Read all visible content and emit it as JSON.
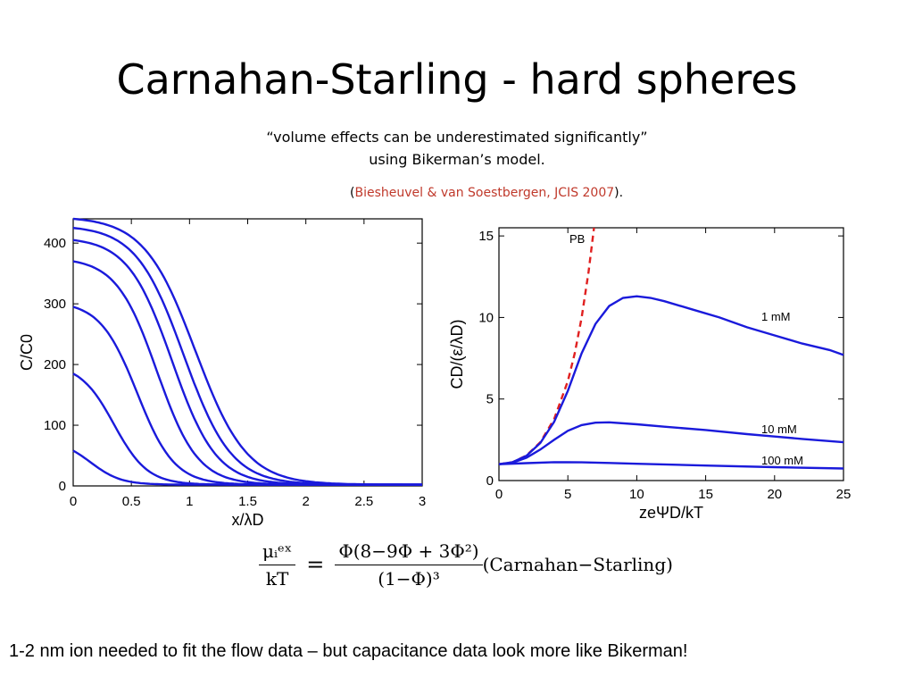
{
  "slide": {
    "title": "Carnahan-Starling - hard spheres",
    "quote_line1": "“volume effects can be underestimated significantly”",
    "quote_line2": "using Bikerman’s model.",
    "citation_open": "(",
    "citation_ref": "Biesheuvel & van Soestbergen, JCIS 2007",
    "citation_close": ").",
    "bottom_text": "1-2 nm ion needed to fit the flow data – but capacitance data look more like Bikerman!",
    "equation": {
      "lhs_num": "μᵢᵉˣ",
      "lhs_den": "kT",
      "eq": "=",
      "rhs_num": "Φ(8−9Φ + 3Φ²)",
      "rhs_den": "(1−Φ)³",
      "label": "(Carnahan−Starling)"
    }
  },
  "chart_data": [
    {
      "type": "line",
      "xlabel": "x/λD",
      "ylabel": "C/C0",
      "xlim": [
        0,
        3
      ],
      "ylim": [
        0,
        440
      ],
      "xticks": [
        "0",
        "0.5",
        "1",
        "1.5",
        "2",
        "2.5",
        "3"
      ],
      "yticks": [
        "0",
        "100",
        "200",
        "300",
        "400"
      ],
      "line_color": "#1a1adb",
      "curve_start_values": [
        440,
        425,
        405,
        370,
        295,
        185,
        58
      ],
      "curve_half_points": [
        1.05,
        0.95,
        0.85,
        0.72,
        0.55,
        0.35,
        0.15
      ],
      "tail_value": 2,
      "legend": "none",
      "grid": false
    },
    {
      "type": "line",
      "xlabel": "zeΨD/kT",
      "ylabel": "CD/(ε/λD)",
      "xlim": [
        0,
        25
      ],
      "ylim": [
        0,
        15.5
      ],
      "xticks": [
        "0",
        "5",
        "10",
        "15",
        "20",
        "25"
      ],
      "yticks": [
        "0",
        "5",
        "10",
        "15"
      ],
      "legend": "none",
      "grid": false,
      "series": [
        {
          "name": "PB",
          "color": "#e02020",
          "dashed": true,
          "x": [
            0,
            1,
            2,
            3,
            4,
            5,
            5.5,
            6,
            6.5,
            6.9
          ],
          "y": [
            1.0,
            1.13,
            1.54,
            2.35,
            3.76,
            6.1,
            7.8,
            9.98,
            12.8,
            15.6
          ]
        },
        {
          "name": "1 mM",
          "color": "#1a1adb",
          "dashed": false,
          "x": [
            0,
            1,
            2,
            3,
            4,
            5,
            6,
            7,
            8,
            9,
            10,
            11,
            12,
            14,
            16,
            18,
            20,
            22,
            24,
            25
          ],
          "y": [
            1.0,
            1.13,
            1.52,
            2.3,
            3.6,
            5.5,
            7.8,
            9.6,
            10.7,
            11.2,
            11.3,
            11.2,
            11.0,
            10.5,
            10.0,
            9.4,
            8.9,
            8.4,
            8.0,
            7.7
          ]
        },
        {
          "name": "10 mM",
          "color": "#1a1adb",
          "dashed": false,
          "x": [
            0,
            1,
            2,
            3,
            4,
            5,
            6,
            7,
            8,
            10,
            12,
            15,
            18,
            20,
            22,
            25
          ],
          "y": [
            1.0,
            1.1,
            1.4,
            1.9,
            2.5,
            3.05,
            3.4,
            3.55,
            3.57,
            3.45,
            3.3,
            3.1,
            2.85,
            2.7,
            2.55,
            2.35
          ]
        },
        {
          "name": "100 mM",
          "color": "#1a1adb",
          "dashed": false,
          "x": [
            0,
            2,
            4,
            6,
            8,
            10,
            15,
            20,
            25
          ],
          "y": [
            1.0,
            1.07,
            1.13,
            1.12,
            1.08,
            1.03,
            0.92,
            0.82,
            0.74
          ]
        }
      ]
    }
  ]
}
